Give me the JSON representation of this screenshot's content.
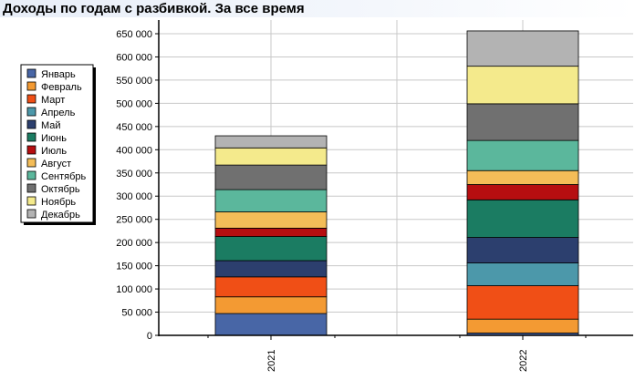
{
  "page": {
    "title": "Доходы по годам с разбивкой. За все время"
  },
  "colors": {
    "Январь": "#4866a6",
    "Февраль": "#f39a33",
    "Март": "#f04f16",
    "Апрель": "#4c98aa",
    "Май": "#2c3f6e",
    "Июнь": "#1b7c62",
    "Июль": "#b60e10",
    "Август": "#f4bd58",
    "Сентябрь": "#5bb79c",
    "Октябрь": "#707070",
    "Ноябрь": "#f4ea8c",
    "Декабрь": "#b3b3b3"
  },
  "chart_data": {
    "type": "bar",
    "stacked": true,
    "categories": [
      "2021",
      "2022"
    ],
    "ylim": [
      0,
      650000
    ],
    "yticks": [
      "0",
      "50 000",
      "100 000",
      "150 000",
      "200 000",
      "250 000",
      "300 000",
      "350 000",
      "400 000",
      "450 000",
      "500 000",
      "550 000",
      "600 000",
      "650 000"
    ],
    "ytick_values": [
      0,
      50000,
      100000,
      150000,
      200000,
      250000,
      300000,
      350000,
      400000,
      450000,
      500000,
      550000,
      600000,
      650000
    ],
    "grid": true,
    "legend_position": "left",
    "series": [
      {
        "name": "Январь",
        "values": [
          47000,
          5000
        ]
      },
      {
        "name": "Февраль",
        "values": [
          36000,
          30000
        ]
      },
      {
        "name": "Март",
        "values": [
          43000,
          72000
        ]
      },
      {
        "name": "Апрель",
        "values": [
          0,
          49000
        ]
      },
      {
        "name": "Май",
        "values": [
          35000,
          55000
        ]
      },
      {
        "name": "Июнь",
        "values": [
          52000,
          81000
        ]
      },
      {
        "name": "Июль",
        "values": [
          18000,
          33000
        ]
      },
      {
        "name": "Август",
        "values": [
          35000,
          30000
        ]
      },
      {
        "name": "Сентябрь",
        "values": [
          48000,
          65000
        ]
      },
      {
        "name": "Октябрь",
        "values": [
          53000,
          79000
        ]
      },
      {
        "name": "Ноябрь",
        "values": [
          37000,
          81000
        ]
      },
      {
        "name": "Декабрь",
        "values": [
          26000,
          76000
        ]
      }
    ]
  }
}
